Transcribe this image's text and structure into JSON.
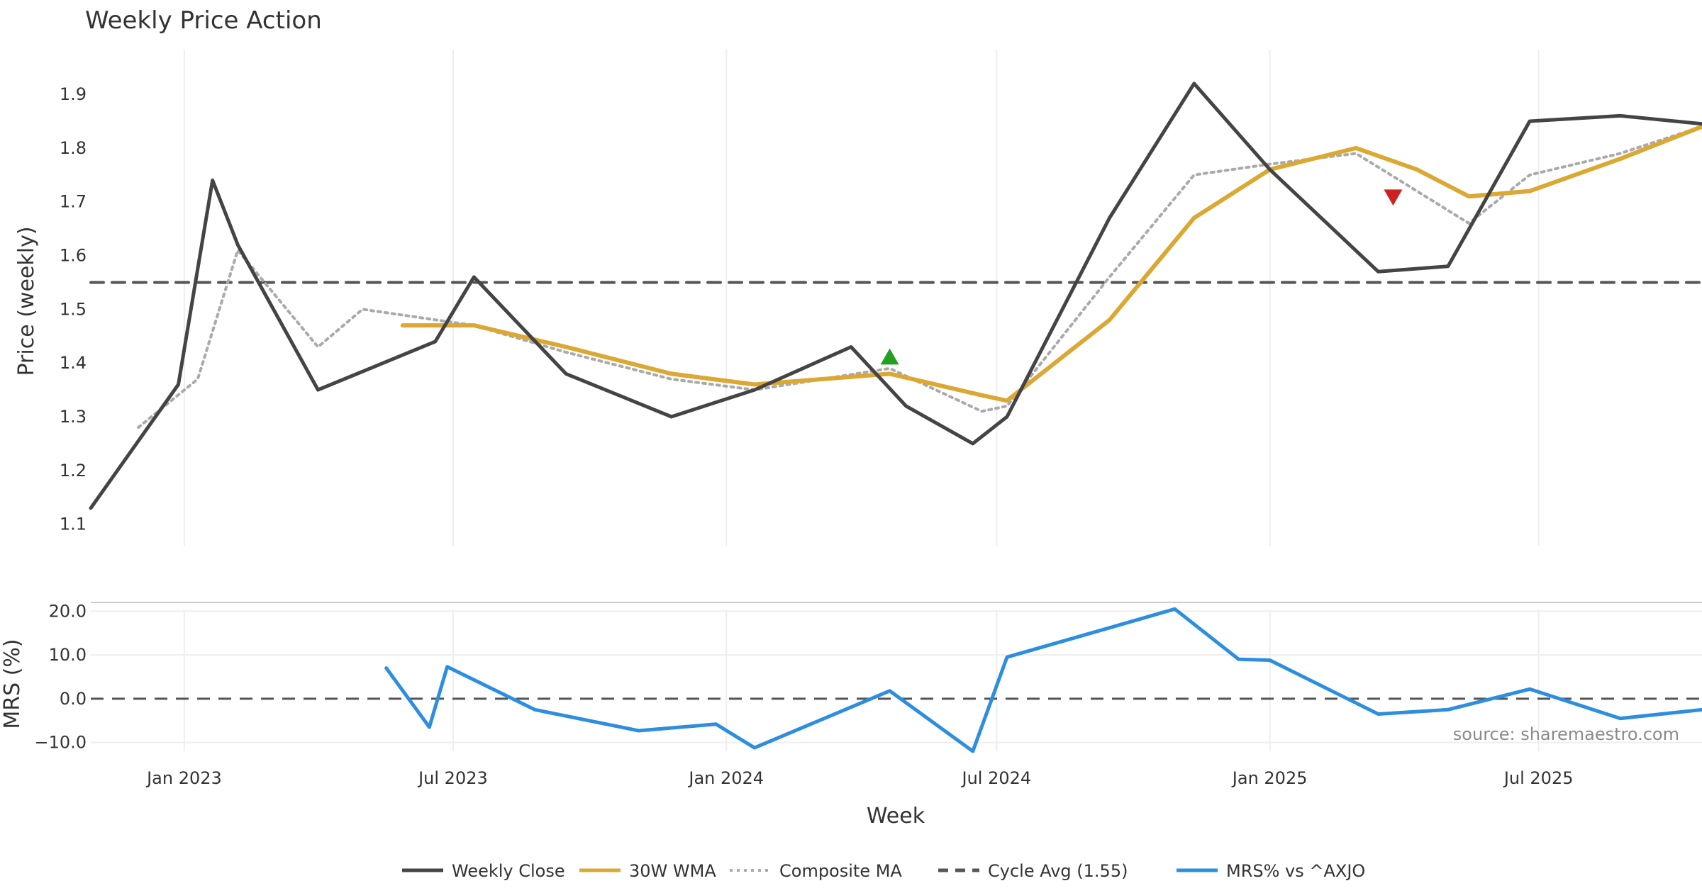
{
  "colors": {
    "close": "#444444",
    "wma": "#daa833",
    "composite": "#aaaaaa",
    "cycle": "#555555",
    "mrs": "#2e8ede",
    "buy_marker": "#22a022",
    "sell_marker": "#cc2222",
    "grid": "#eeeeee",
    "text": "#333333",
    "source_text": "#8a8a8a"
  },
  "chart_data": {
    "type": "line",
    "title": "Weekly Price Action",
    "xlabel": "Week",
    "source": "source: sharemaestro.com",
    "x_ticks": [
      {
        "date": "2023-01-01",
        "label": "Jan 2023"
      },
      {
        "date": "2023-07-01",
        "label": "Jul 2023"
      },
      {
        "date": "2024-01-01",
        "label": "Jan 2024"
      },
      {
        "date": "2024-07-01",
        "label": "Jul 2024"
      },
      {
        "date": "2025-01-01",
        "label": "Jan 2025"
      },
      {
        "date": "2025-07-01",
        "label": "Jul 2025"
      }
    ],
    "x_range": [
      "2022-10-30",
      "2025-10-19"
    ],
    "legend_position": "bottom",
    "price_panel": {
      "ylabel": "Price (weekly)",
      "ylim": [
        1.06,
        1.97
      ],
      "y_ticks": [
        {
          "value": 1.1,
          "label": "1.1"
        },
        {
          "value": 1.2,
          "label": "1.2"
        },
        {
          "value": 1.3,
          "label": "1.3"
        },
        {
          "value": 1.4,
          "label": "1.4"
        },
        {
          "value": 1.5,
          "label": "1.5"
        },
        {
          "value": 1.6,
          "label": "1.6"
        },
        {
          "value": 1.7,
          "label": "1.7"
        },
        {
          "value": 1.8,
          "label": "1.8"
        },
        {
          "value": 1.9,
          "label": "1.9"
        }
      ],
      "series": [
        {
          "name": "Weekly Close",
          "color_key": "close",
          "style": "solid",
          "x": [
            "2022-10-30",
            "2022-12-28",
            "2023-01-20",
            "2023-02-06",
            "2023-04-01",
            "2023-06-19",
            "2023-07-15",
            "2023-09-15",
            "2023-11-25",
            "2024-01-20",
            "2024-03-25",
            "2024-05-01",
            "2024-06-15",
            "2024-07-08",
            "2024-09-15",
            "2024-11-11",
            "2025-01-01",
            "2025-03-15",
            "2025-05-01",
            "2025-06-25",
            "2025-08-25",
            "2025-10-19"
          ],
          "values": [
            1.13,
            1.36,
            1.74,
            1.62,
            1.35,
            1.44,
            1.56,
            1.38,
            1.3,
            1.35,
            1.43,
            1.32,
            1.25,
            1.3,
            1.67,
            1.92,
            1.76,
            1.57,
            1.58,
            1.85,
            1.86,
            1.845
          ]
        },
        {
          "name": "30W WMA",
          "color_key": "wma",
          "style": "solid",
          "x": [
            "2023-05-28",
            "2023-07-15",
            "2023-09-15",
            "2023-11-25",
            "2024-01-20",
            "2024-04-20",
            "2024-06-21",
            "2024-07-08",
            "2024-09-15",
            "2024-11-11",
            "2025-01-01",
            "2025-02-28",
            "2025-04-10",
            "2025-05-15",
            "2025-06-25",
            "2025-08-25",
            "2025-10-19"
          ],
          "values": [
            1.47,
            1.47,
            1.43,
            1.38,
            1.36,
            1.38,
            1.34,
            1.33,
            1.48,
            1.67,
            1.76,
            1.8,
            1.76,
            1.71,
            1.72,
            1.78,
            1.84
          ]
        },
        {
          "name": "Composite MA",
          "color_key": "composite",
          "style": "dotted",
          "x": [
            "2022-12-01",
            "2023-01-10",
            "2023-02-06",
            "2023-04-01",
            "2023-05-01",
            "2023-07-15",
            "2023-09-15",
            "2023-11-25",
            "2024-01-20",
            "2024-04-20",
            "2024-06-21",
            "2024-07-08",
            "2024-09-15",
            "2024-11-11",
            "2025-01-01",
            "2025-02-28",
            "2025-04-10",
            "2025-05-15",
            "2025-06-25",
            "2025-08-25",
            "2025-10-19"
          ],
          "values": [
            1.28,
            1.37,
            1.61,
            1.43,
            1.5,
            1.47,
            1.42,
            1.37,
            1.35,
            1.39,
            1.31,
            1.32,
            1.56,
            1.75,
            1.77,
            1.79,
            1.72,
            1.66,
            1.75,
            1.79,
            1.84
          ]
        },
        {
          "name": "Cycle Avg (1.55)",
          "color_key": "cycle",
          "style": "dashed",
          "x": [
            "2022-10-30",
            "2025-10-19"
          ],
          "values": [
            1.55,
            1.55
          ]
        }
      ],
      "markers": [
        {
          "type": "buy",
          "date": "2024-04-20",
          "value": 1.41
        },
        {
          "type": "sell",
          "date": "2025-03-25",
          "value": 1.71
        }
      ]
    },
    "mrs_panel": {
      "ylabel": "MRS (%)",
      "ylim": [
        -12,
        22
      ],
      "y_ticks": [
        {
          "value": 20,
          "label": "20.0"
        },
        {
          "value": 10,
          "label": "10.0"
        },
        {
          "value": 0,
          "label": "0.0"
        },
        {
          "value": -10,
          "label": "−10.0"
        }
      ],
      "zero_line": 0,
      "series": [
        {
          "name": "MRS% vs ^AXJO",
          "color_key": "mrs",
          "style": "solid",
          "x": [
            "2023-05-17",
            "2023-06-15",
            "2023-06-27",
            "2023-08-25",
            "2023-11-03",
            "2023-12-25",
            "2024-01-20",
            "2024-04-20",
            "2024-06-15",
            "2024-07-08",
            "2024-09-15",
            "2024-10-29",
            "2024-12-11",
            "2025-01-01",
            "2025-03-15",
            "2025-05-01",
            "2025-06-25",
            "2025-08-25",
            "2025-10-19"
          ],
          "values": [
            7,
            -6.5,
            7.3,
            -2.5,
            -7.3,
            -5.8,
            -11.2,
            1.8,
            -12,
            9.5,
            16.2,
            20.5,
            9,
            8.8,
            -3.5,
            -2.5,
            2.2,
            -4.5,
            -2.5
          ]
        }
      ]
    }
  },
  "legend": [
    {
      "label": "Weekly Close",
      "color_key": "close",
      "style": "solid"
    },
    {
      "label": "30W WMA",
      "color_key": "wma",
      "style": "solid"
    },
    {
      "label": "Composite MA",
      "color_key": "composite",
      "style": "dotted"
    },
    {
      "label": "Cycle Avg (1.55)",
      "color_key": "cycle",
      "style": "dashed"
    },
    {
      "label": "MRS% vs ^AXJO",
      "color_key": "mrs",
      "style": "solid"
    }
  ]
}
